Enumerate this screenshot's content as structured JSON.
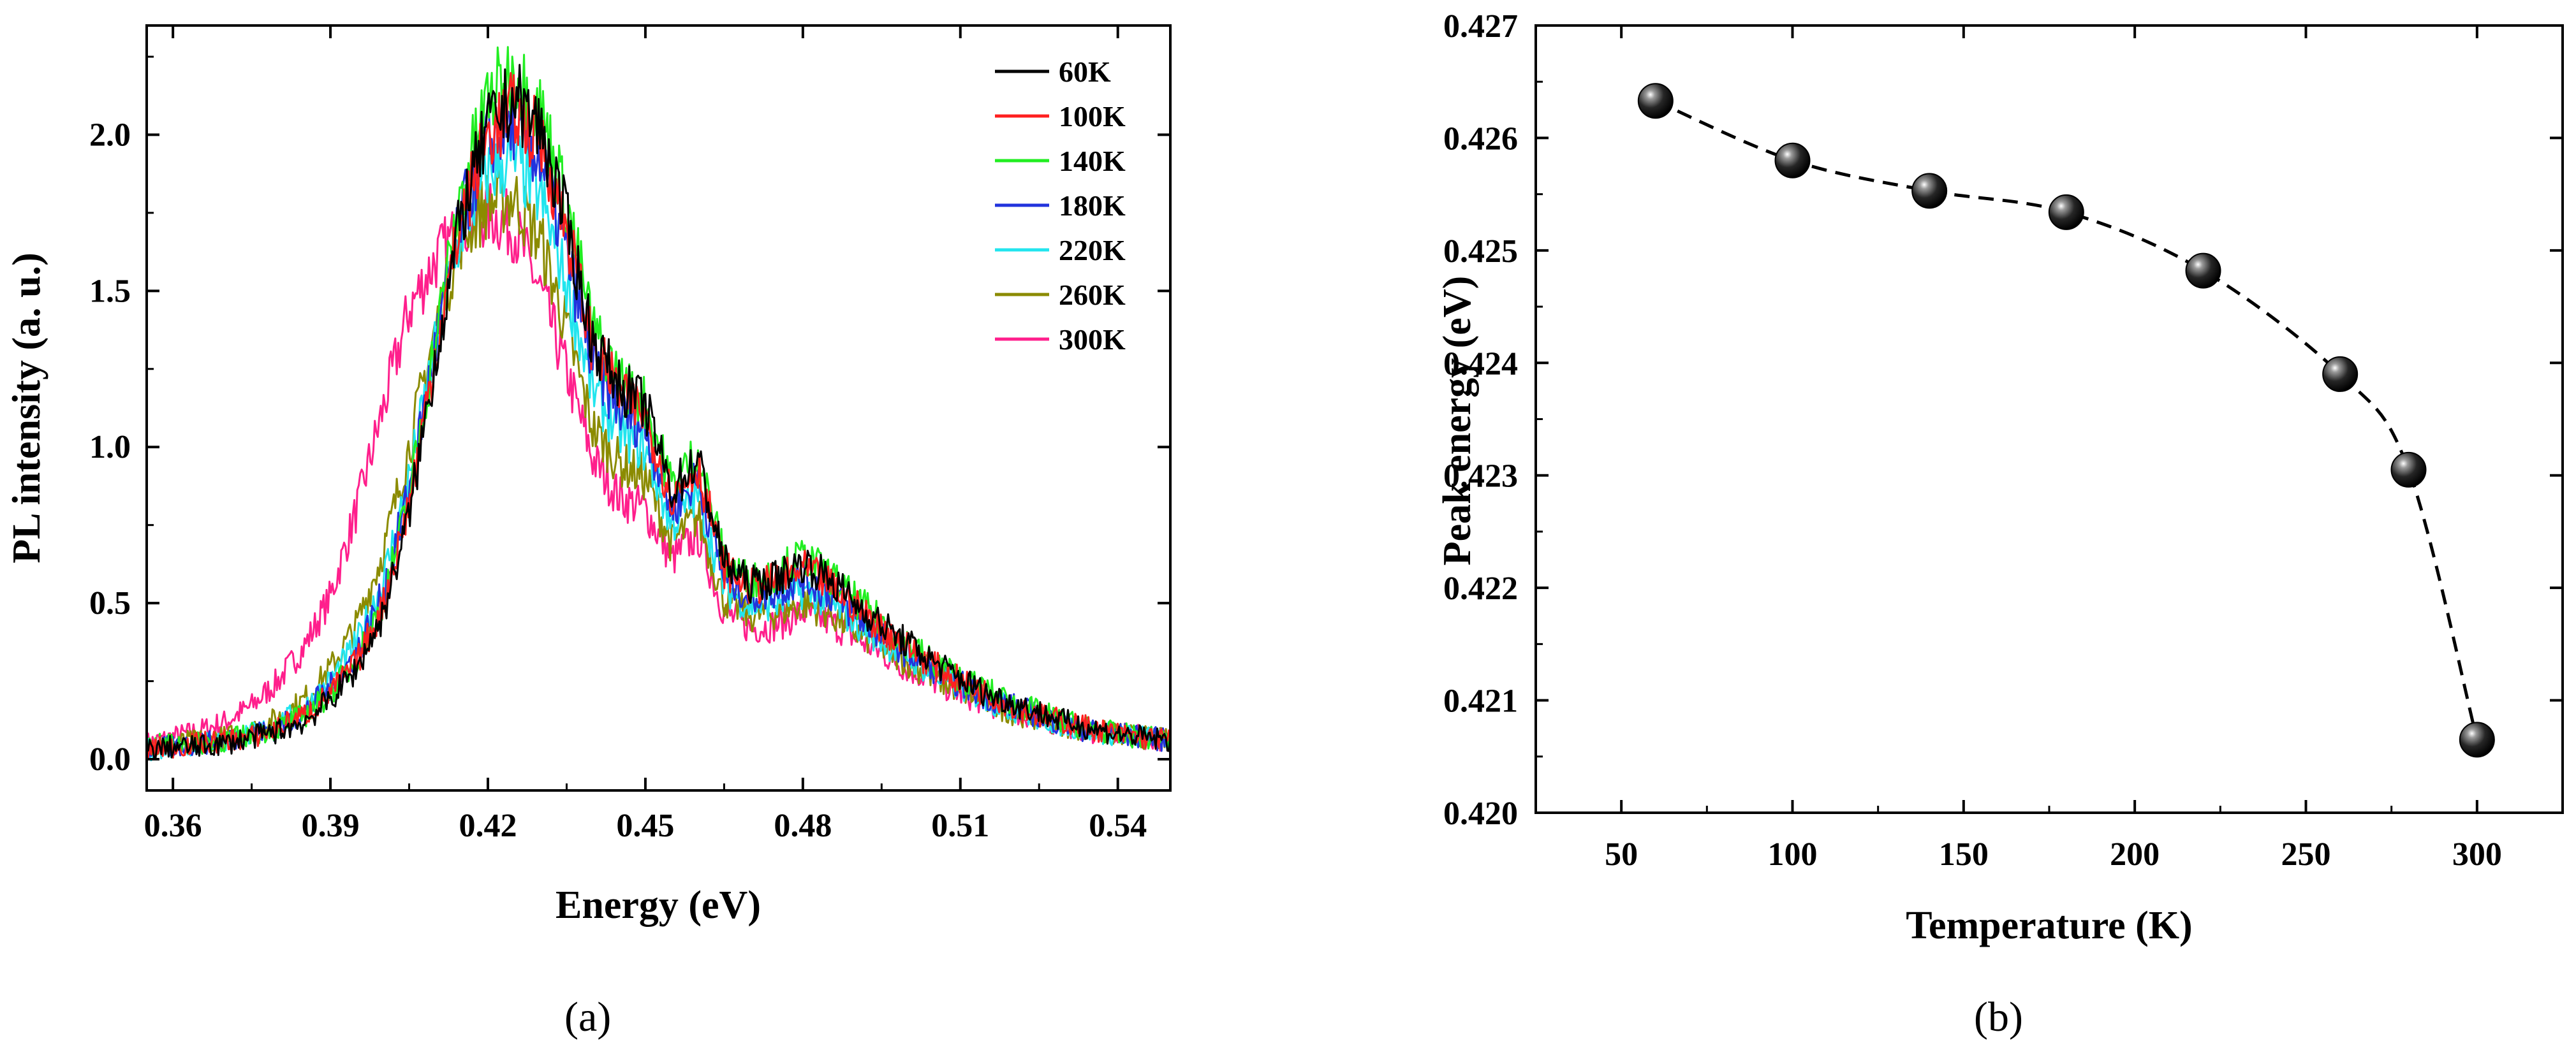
{
  "chart_data": [
    {
      "type": "line",
      "panel": "(a)",
      "xlabel": "Energy (eV)",
      "ylabel": "PL intensity (a. u.)",
      "xlim": [
        0.355,
        0.55
      ],
      "ylim": [
        -0.1,
        2.35
      ],
      "xticks": [
        "0.36",
        "0.39",
        "0.42",
        "0.45",
        "0.48",
        "0.51",
        "0.54"
      ],
      "yticks": [
        "0.0",
        "0.5",
        "1.0",
        "1.5",
        "2.0"
      ],
      "legend_position": "top-right",
      "x": [
        0.355,
        0.36,
        0.365,
        0.37,
        0.375,
        0.38,
        0.385,
        0.39,
        0.395,
        0.4,
        0.405,
        0.41,
        0.415,
        0.42,
        0.425,
        0.43,
        0.435,
        0.44,
        0.445,
        0.45,
        0.455,
        0.46,
        0.465,
        0.47,
        0.475,
        0.48,
        0.485,
        0.49,
        0.495,
        0.5,
        0.505,
        0.51,
        0.515,
        0.52,
        0.525,
        0.53,
        0.535,
        0.54,
        0.545,
        0.55
      ],
      "series": [
        {
          "name": "60K",
          "color": "#000000",
          "values": [
            0.03,
            0.04,
            0.04,
            0.05,
            0.07,
            0.09,
            0.12,
            0.19,
            0.29,
            0.46,
            0.78,
            1.28,
            1.74,
            2.02,
            2.12,
            2.02,
            1.72,
            1.34,
            1.2,
            1.13,
            0.86,
            0.96,
            0.63,
            0.56,
            0.58,
            0.63,
            0.58,
            0.5,
            0.43,
            0.37,
            0.31,
            0.26,
            0.21,
            0.18,
            0.15,
            0.12,
            0.1,
            0.08,
            0.07,
            0.06
          ]
        },
        {
          "name": "100K",
          "color": "#ff2020",
          "values": [
            0.03,
            0.04,
            0.05,
            0.06,
            0.07,
            0.1,
            0.14,
            0.21,
            0.31,
            0.49,
            0.82,
            1.3,
            1.74,
            2.0,
            2.08,
            1.98,
            1.7,
            1.32,
            1.18,
            1.1,
            0.84,
            0.94,
            0.61,
            0.55,
            0.57,
            0.61,
            0.56,
            0.49,
            0.42,
            0.36,
            0.3,
            0.25,
            0.21,
            0.17,
            0.14,
            0.12,
            0.1,
            0.08,
            0.07,
            0.06
          ]
        },
        {
          "name": "140K",
          "color": "#22ee22",
          "values": [
            0.04,
            0.05,
            0.05,
            0.06,
            0.08,
            0.1,
            0.14,
            0.21,
            0.32,
            0.5,
            0.84,
            1.34,
            1.82,
            2.12,
            2.2,
            2.08,
            1.78,
            1.38,
            1.22,
            1.14,
            0.88,
            0.98,
            0.64,
            0.57,
            0.6,
            0.65,
            0.59,
            0.51,
            0.44,
            0.37,
            0.31,
            0.26,
            0.22,
            0.18,
            0.15,
            0.12,
            0.1,
            0.08,
            0.07,
            0.06
          ]
        },
        {
          "name": "180K",
          "color": "#2233dd",
          "values": [
            0.03,
            0.04,
            0.05,
            0.06,
            0.08,
            0.1,
            0.15,
            0.23,
            0.34,
            0.53,
            0.86,
            1.32,
            1.74,
            1.98,
            2.04,
            1.92,
            1.62,
            1.26,
            1.12,
            1.06,
            0.8,
            0.9,
            0.58,
            0.52,
            0.54,
            0.58,
            0.53,
            0.46,
            0.4,
            0.34,
            0.29,
            0.24,
            0.2,
            0.17,
            0.14,
            0.11,
            0.09,
            0.08,
            0.07,
            0.06
          ]
        },
        {
          "name": "220K",
          "color": "#22e5ee",
          "values": [
            0.03,
            0.04,
            0.05,
            0.06,
            0.08,
            0.11,
            0.16,
            0.25,
            0.37,
            0.57,
            0.9,
            1.32,
            1.7,
            1.88,
            1.92,
            1.8,
            1.52,
            1.18,
            1.05,
            0.99,
            0.75,
            0.85,
            0.55,
            0.49,
            0.5,
            0.54,
            0.5,
            0.44,
            0.38,
            0.33,
            0.27,
            0.23,
            0.19,
            0.16,
            0.13,
            0.11,
            0.09,
            0.08,
            0.07,
            0.06
          ]
        },
        {
          "name": "260K",
          "color": "#8b8b00",
          "values": [
            0.04,
            0.05,
            0.06,
            0.07,
            0.09,
            0.13,
            0.19,
            0.29,
            0.43,
            0.66,
            1.0,
            1.38,
            1.68,
            1.78,
            1.8,
            1.66,
            1.38,
            1.06,
            0.95,
            0.9,
            0.69,
            0.78,
            0.51,
            0.46,
            0.47,
            0.5,
            0.47,
            0.41,
            0.36,
            0.31,
            0.26,
            0.22,
            0.18,
            0.15,
            0.13,
            0.11,
            0.09,
            0.08,
            0.07,
            0.06
          ]
        },
        {
          "name": "300K",
          "color": "#ff1f8c",
          "values": [
            0.05,
            0.07,
            0.09,
            0.12,
            0.17,
            0.25,
            0.36,
            0.52,
            0.8,
            1.12,
            1.44,
            1.6,
            1.7,
            1.75,
            1.7,
            1.5,
            1.24,
            0.96,
            0.84,
            0.8,
            0.64,
            0.72,
            0.47,
            0.42,
            0.43,
            0.47,
            0.44,
            0.39,
            0.34,
            0.29,
            0.25,
            0.21,
            0.18,
            0.15,
            0.13,
            0.11,
            0.09,
            0.08,
            0.07,
            0.06
          ]
        }
      ]
    },
    {
      "type": "scatter",
      "panel": "(b)",
      "xlabel": "Temperature (K)",
      "ylabel": "Peak energy (eV)",
      "xlim": [
        25,
        325
      ],
      "ylim": [
        0.42,
        0.427
      ],
      "xticks": [
        "50",
        "100",
        "150",
        "200",
        "250",
        "300"
      ],
      "yticks": [
        "0.420",
        "0.421",
        "0.422",
        "0.423",
        "0.424",
        "0.425",
        "0.426",
        "0.427"
      ],
      "x": [
        60,
        100,
        140,
        180,
        220,
        260,
        280,
        300
      ],
      "y": [
        0.42633,
        0.4258,
        0.42553,
        0.42534,
        0.42482,
        0.4239,
        0.42305,
        0.42065
      ],
      "connector": "dashed",
      "marker_color": "#111111"
    }
  ]
}
